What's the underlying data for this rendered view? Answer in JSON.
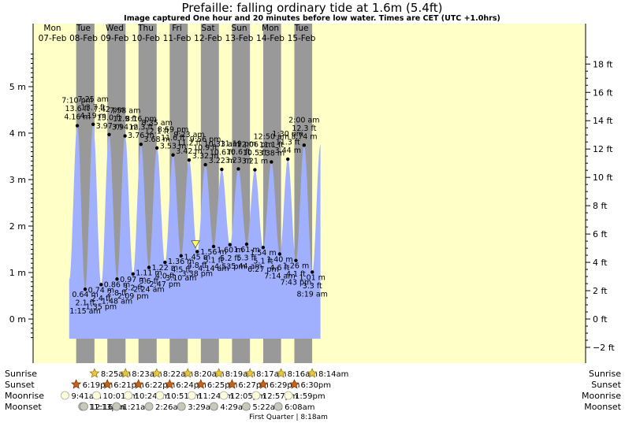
{
  "title": "Prefaille: falling  ordinary tide at 1.6m (5.4ft)",
  "subtitle": "Image captured One hour and 20 minutes before low water. Times are CET (UTC +1.0hrs)",
  "chart_data": {
    "type": "area",
    "title": "Prefaille: falling  ordinary tide at 1.6m (5.4ft)",
    "subtitle": "Image captured One hour and 20 minutes before low water. Times are CET (UTC +1.0hrs)",
    "y_left_ticks": [
      "0 m",
      "1 m",
      "2 m",
      "3 m",
      "4 m",
      "5 m"
    ],
    "y_right_ticks": [
      "−2 ft",
      "0 ft",
      "2 ft",
      "4 ft",
      "6 ft",
      "8 ft",
      "10 ft",
      "12 ft",
      "14 ft",
      "16 ft",
      "18 ft"
    ],
    "ylim_m": [
      -0.45,
      5.8
    ],
    "days": [
      {
        "dow": "Mon",
        "date": "07-Feb",
        "weekend": false
      },
      {
        "dow": "Tue",
        "date": "08-Feb",
        "weekend": false
      },
      {
        "dow": "Wed",
        "date": "09-Feb",
        "weekend": false
      },
      {
        "dow": "Thu",
        "date": "10-Feb",
        "weekend": false
      },
      {
        "dow": "Fri",
        "date": "11-Feb",
        "weekend": false
      },
      {
        "dow": "Sat",
        "date": "12-Feb",
        "weekend": true
      },
      {
        "dow": "Sun",
        "date": "13-Feb",
        "weekend": true
      },
      {
        "dow": "Mon",
        "date": "14-Feb",
        "weekend": false
      },
      {
        "dow": "Tue",
        "date": "15-Feb",
        "weekend": false
      }
    ],
    "tides": [
      {
        "type": "high",
        "time": "7:10 pm",
        "ft": "13.6 ft",
        "m": 4.16,
        "t": 19.17
      },
      {
        "type": "low",
        "time": "1:15 am",
        "ft": "2.1 ft",
        "m": 0.64,
        "t": 25.25
      },
      {
        "type": "high",
        "time": "7:25 am",
        "ft": "13.7 ft",
        "m": 4.19,
        "t": 31.42
      },
      {
        "type": "low",
        "time": "1:35 pm",
        "ft": "2.4 ft",
        "m": 0.74,
        "t": 37.58
      },
      {
        "type": "high",
        "time": "7:42 pm",
        "ft": "13.0 ft",
        "m": 3.97,
        "t": 43.7
      },
      {
        "type": "low",
        "time": "1:48 am",
        "ft": "2.8 ft",
        "m": 0.86,
        "t": 49.8
      },
      {
        "type": "high",
        "time": "7:58 am",
        "ft": "12.9 ft",
        "m": 3.94,
        "t": 55.97
      },
      {
        "type": "low",
        "time": "2:09 pm",
        "ft": "3.2 ft",
        "m": 0.97,
        "t": 62.15
      },
      {
        "type": "high",
        "time": "8:16 pm",
        "ft": "12.3 ft",
        "m": 3.76,
        "t": 68.27
      },
      {
        "type": "low",
        "time": "2:24 am",
        "ft": "3.6 ft",
        "m": 1.11,
        "t": 74.4
      },
      {
        "type": "high",
        "time": "8:35 am",
        "ft": "12.1 ft",
        "m": 3.68,
        "t": 80.58
      },
      {
        "type": "low",
        "time": "2:47 pm",
        "ft": "4.0 ft",
        "m": 1.22,
        "t": 86.78
      },
      {
        "type": "high",
        "time": "8:59 pm",
        "ft": "11.6 ft",
        "m": 3.53,
        "t": 92.98
      },
      {
        "type": "low",
        "time": "3:10 am",
        "ft": "4.5 ft",
        "m": 1.36,
        "t": 99.17
      },
      {
        "type": "high",
        "time": "9:23 am",
        "ft": "11.2 ft",
        "m": 3.42,
        "t": 105.38
      },
      {
        "type": "low",
        "time": "3:38 pm",
        "ft": "4.8 ft",
        "m": 1.45,
        "t": 111.63
      },
      {
        "type": "high",
        "time": "9:56 pm",
        "ft": "10.9 ft",
        "m": 3.32,
        "t": 117.93
      },
      {
        "type": "low",
        "time": "4:14 am",
        "ft": "5.1 ft",
        "m": 1.56,
        "t": 124.23
      },
      {
        "type": "high",
        "time": "10:33 am",
        "ft": "10.6 ft",
        "m": 3.22,
        "t": 130.55
      },
      {
        "type": "low",
        "time": "4:53 pm",
        "ft": "5.2 ft",
        "m": 1.6,
        "t": 136.88
      },
      {
        "type": "high",
        "time": "11:19 pm",
        "ft": "10.6 ft",
        "m": 3.23,
        "t": 143.32
      },
      {
        "type": "low",
        "time": "5:44 am",
        "ft": "5.3 ft",
        "m": 1.61,
        "t": 149.73
      },
      {
        "type": "high",
        "time": "12:06 pm",
        "ft": "10.5 ft",
        "m": 3.21,
        "t": 156.1
      },
      {
        "type": "low",
        "time": "6:27 pm",
        "ft": "5.1 ft",
        "m": 1.54,
        "t": 162.45
      },
      {
        "type": "high",
        "time": "12:50 am",
        "ft": "11.1 ft",
        "m": 3.38,
        "t": 168.83
      },
      {
        "type": "low",
        "time": "7:14 am",
        "ft": "4.6 ft",
        "m": 1.4,
        "t": 175.23
      },
      {
        "type": "high",
        "time": "1:30 pm",
        "ft": "11.3 ft",
        "m": 3.44,
        "t": 181.5
      },
      {
        "type": "low",
        "time": "7:43 pm",
        "ft": "4.1 ft",
        "m": 1.26,
        "t": 187.72
      },
      {
        "type": "high",
        "time": "2:00 am",
        "ft": "12.3 ft",
        "m": 3.74,
        "t": 194.0
      },
      {
        "type": "low",
        "time": "8:19 am",
        "ft": "3.3 ft",
        "m": 1.01,
        "t": 200.32
      }
    ],
    "current_marker": {
      "t": 110.3,
      "m": 1.6
    },
    "sunrise": [
      "8:25am",
      "8:23am",
      "8:22am",
      "8:20am",
      "8:19am",
      "8:17am",
      "8:16am",
      "8:14am"
    ],
    "sunset": [
      "6:19pm",
      "6:21pm",
      "6:22pm",
      "6:24pm",
      "6:25pm",
      "6:27pm",
      "6:29pm",
      "6:30pm"
    ],
    "moonrise": [
      "9:41am",
      "10:01am",
      "10:24am",
      "10:51am",
      "11:24am",
      "12:05pm",
      "12:57pm",
      "1:59pm"
    ],
    "moonset": [
      "11:13pm",
      "12:16am",
      "1:21am",
      "2:26am",
      "3:29am",
      "4:29am",
      "5:22am",
      "6:08am"
    ],
    "colors": {
      "day": "#ffffc8",
      "night": "#999999",
      "water": "#a0b0ff",
      "date_text": "#e00000",
      "sun": "#e8c840",
      "sunset_icon": "#c86418",
      "moon": "#ffffd8",
      "moonset_icon": "#c8c8b8"
    }
  },
  "labels": {
    "sunrise": "Sunrise",
    "sunset": "Sunset",
    "moonrise": "Moonrise",
    "moonset": "Moonset",
    "moon_phase": "First Quarter | 8:18am"
  }
}
